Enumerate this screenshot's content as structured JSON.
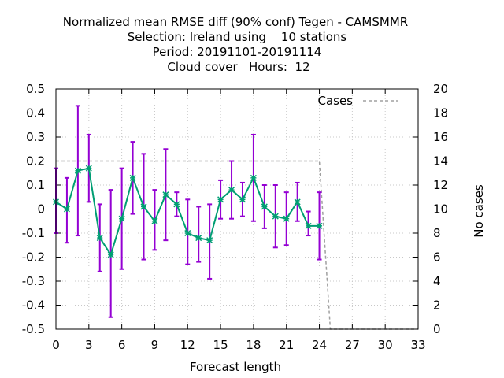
{
  "chart_data": {
    "type": "line",
    "title_lines": [
      "Normalized mean RMSE diff (90% conf) Tegen - CAMSMMR",
      "Selection: Ireland using    10 stations",
      "Period: 20191101-20191114",
      "Cloud cover   Hours:  12"
    ],
    "xlabel": "Forecast length",
    "ylabel": "",
    "y2label": "No cases",
    "xlim": [
      0,
      33
    ],
    "ylim": [
      -0.5,
      0.5
    ],
    "y2lim": [
      0,
      20
    ],
    "xticks": [
      "0",
      "3",
      "6",
      "9",
      "12",
      "15",
      "18",
      "21",
      "24",
      "27",
      "30",
      "33"
    ],
    "yticks": [
      "-0.5",
      "-0.4",
      "-0.3",
      "-0.2",
      "-0.1",
      "0",
      "0.1",
      "0.2",
      "0.3",
      "0.4",
      "0.5"
    ],
    "y2ticks": [
      "0",
      "2",
      "4",
      "6",
      "8",
      "10",
      "12",
      "14",
      "16",
      "18",
      "20"
    ],
    "grid": true,
    "legend_position": "top-right",
    "series": [
      {
        "kind": "line-errorbars",
        "color": "#009e73",
        "error_color": "#9400d3",
        "x": [
          0,
          1,
          2,
          3,
          4,
          5,
          6,
          7,
          8,
          9,
          10,
          11,
          12,
          13,
          14,
          15,
          16,
          17,
          18,
          19,
          20,
          21,
          22,
          23,
          24
        ],
        "y": [
          0.03,
          0.0,
          0.16,
          0.17,
          -0.12,
          -0.19,
          -0.04,
          0.13,
          0.01,
          -0.05,
          0.06,
          0.02,
          -0.1,
          -0.12,
          -0.13,
          0.04,
          0.08,
          0.04,
          0.13,
          0.01,
          -0.03,
          -0.04,
          0.03,
          -0.07,
          -0.07
        ],
        "y_low": [
          -0.1,
          -0.14,
          -0.11,
          0.03,
          -0.26,
          -0.45,
          -0.25,
          -0.02,
          -0.21,
          -0.17,
          -0.13,
          -0.03,
          -0.23,
          -0.22,
          -0.29,
          -0.04,
          -0.04,
          -0.03,
          -0.05,
          -0.08,
          -0.16,
          -0.15,
          -0.05,
          -0.11,
          -0.21
        ],
        "y_high": [
          0.17,
          0.13,
          0.43,
          0.31,
          0.02,
          0.08,
          0.17,
          0.28,
          0.23,
          0.08,
          0.25,
          0.07,
          0.04,
          0.01,
          0.02,
          0.12,
          0.2,
          0.11,
          0.31,
          0.1,
          0.1,
          0.07,
          0.11,
          -0.01,
          0.07
        ]
      },
      {
        "name": "Cases",
        "kind": "dashed-line",
        "axis": "y2",
        "color": "#a0a0a0",
        "x": [
          0,
          24,
          25,
          33
        ],
        "y": [
          14,
          14,
          0,
          0
        ]
      }
    ]
  }
}
